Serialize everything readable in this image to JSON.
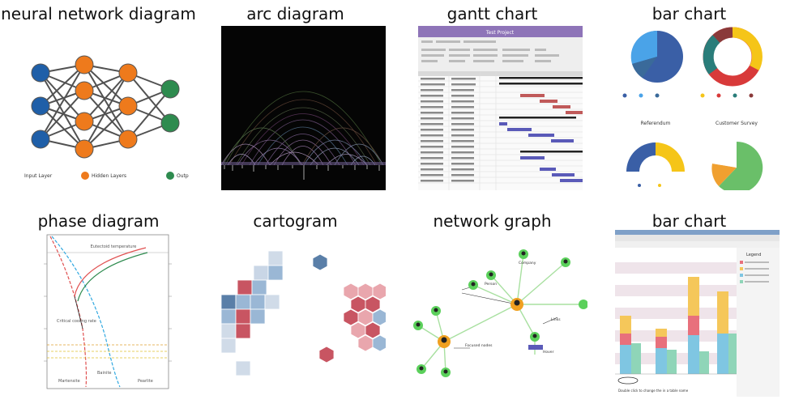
{
  "panels": [
    {
      "title": "neural network diagram",
      "thumbnail": {
        "legend": [
          "Input Layer",
          "Hidden Layers",
          "Outp"
        ],
        "colors": {
          "input": "#1f5fa8",
          "hidden": "#ee7a1c",
          "output": "#2e8b4f"
        }
      }
    },
    {
      "title": "arc diagram",
      "thumbnail": {
        "background": "#050505"
      }
    },
    {
      "title": "gantt chart",
      "thumbnail": {
        "header_text": "Test Project",
        "header_color": "#8e74b8"
      }
    },
    {
      "title": "bar chart",
      "thumbnail": {
        "subtitles": [
          "Referendum",
          "Customer Survey"
        ],
        "colors": [
          "#3a5fa6",
          "#4aa3e8",
          "#f5c518",
          "#d83a3a",
          "#2a7d7a",
          "#6abf69"
        ]
      }
    },
    {
      "title": "phase diagram",
      "thumbnail": {
        "texts": [
          "Eutectoid temperature",
          "Critical cooling rate",
          "Martensite",
          "Pearlite",
          "Bainite"
        ]
      }
    },
    {
      "title": "cartogram",
      "thumbnail": {
        "colors": [
          "#c85562",
          "#e9a6ad",
          "#9ab7d5",
          "#5a7fa8",
          "#d0dbe8"
        ]
      }
    },
    {
      "title": "network graph",
      "thumbnail": {
        "texts": [
          "Company",
          "Person",
          "Links",
          "Focused nodes",
          "Hover"
        ]
      }
    },
    {
      "title": "bar chart",
      "thumbnail": {
        "texts": [
          "Legend",
          "Double click to change the in a table name"
        ],
        "colors": [
          "#f5c75a",
          "#e8707c",
          "#8fd5b8",
          "#7fc6e2"
        ]
      }
    }
  ]
}
